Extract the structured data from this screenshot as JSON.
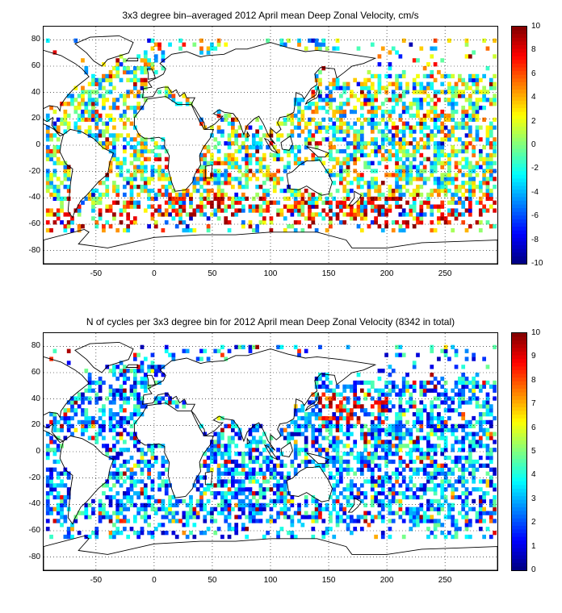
{
  "chart_data": [
    {
      "type": "heatmap",
      "title": "3x3 degree bin–averaged 2012 April mean Deep Zonal Velocity, cm/s",
      "xlim": [
        -95,
        295
      ],
      "ylim": [
        -90,
        90
      ],
      "xticks": [
        -50,
        0,
        50,
        100,
        150,
        200,
        250
      ],
      "yticks": [
        80,
        60,
        40,
        20,
        0,
        -20,
        -40,
        -60,
        -80
      ],
      "colorbar": {
        "min": -10,
        "max": 10,
        "ticks": [
          10,
          8,
          6,
          4,
          2,
          0,
          -2,
          -4,
          -6,
          -8,
          -10
        ]
      },
      "grid": true,
      "colormap": "jet",
      "bin_size_deg": 3
    },
    {
      "type": "heatmap",
      "title": "N of cycles per 3x3 degree bin for 2012 April mean Deep Zonal Velocity (8342 in total)",
      "xlim": [
        -95,
        295
      ],
      "ylim": [
        -90,
        90
      ],
      "xticks": [
        -50,
        0,
        50,
        100,
        150,
        200,
        250
      ],
      "yticks": [
        80,
        60,
        40,
        20,
        0,
        -20,
        -40,
        -60,
        -80
      ],
      "colorbar": {
        "min": 0,
        "max": 10,
        "ticks": [
          10,
          9,
          8,
          7,
          6,
          5,
          4,
          3,
          2,
          1,
          0
        ]
      },
      "grid": true,
      "colormap": "jet",
      "bin_size_deg": 3
    }
  ]
}
